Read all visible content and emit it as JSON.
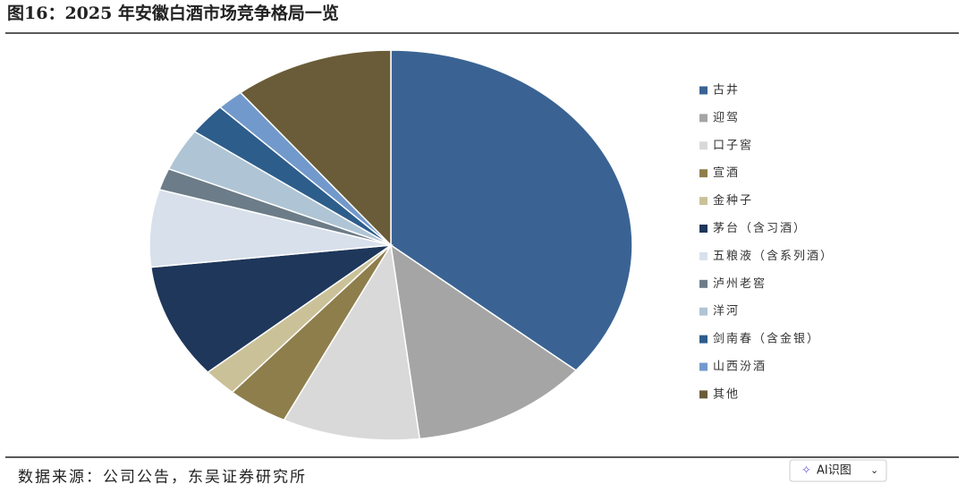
{
  "chart_data": {
    "type": "pie",
    "title": "图16：2025 年安徽白酒市场竞争格局一览",
    "source": "数据来源：公司公告，东吴证券研究所",
    "categories": [
      "古井",
      "迎驾",
      "口子窖",
      "宣酒",
      "金种子",
      "茅台（含习酒）",
      "五粮液（含系列酒）",
      "泸州老窖",
      "洋河",
      "剑南春（含金银）",
      "山西汾酒",
      "其他"
    ],
    "values": [
      36.1,
      12.0,
      9.2,
      4.1,
      2.3,
      9.5,
      6.4,
      1.8,
      3.5,
      2.6,
      1.8,
      10.7
    ],
    "colors": [
      "#3a6393",
      "#a5a5a5",
      "#d9d9d9",
      "#8e7e4c",
      "#cbc199",
      "#1e375a",
      "#d8e0ec",
      "#6c7c88",
      "#afc5d5",
      "#2d5d8b",
      "#7299cb",
      "#6a5c38"
    ],
    "legend": "right"
  },
  "ui": {
    "button": "AI识图"
  }
}
